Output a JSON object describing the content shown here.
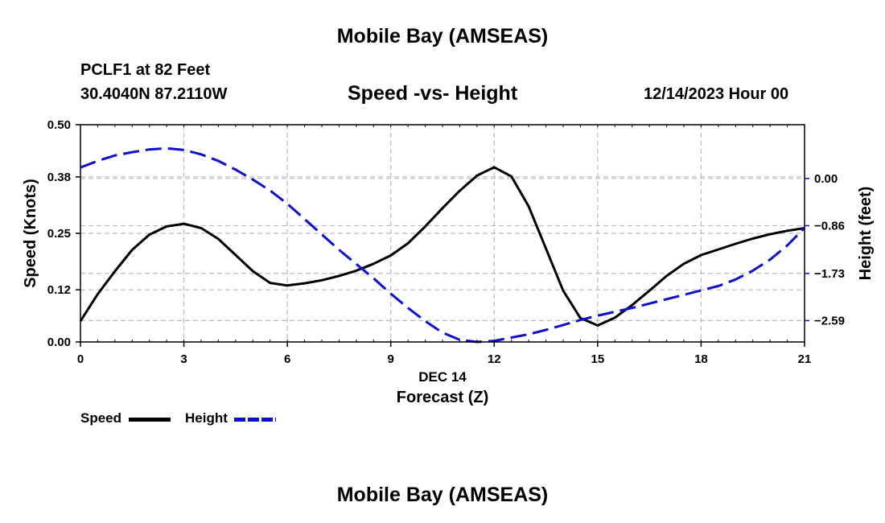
{
  "chart_data": {
    "type": "line",
    "title": "Mobile Bay (AMSEAS)",
    "subtitle": "Speed -vs- Height",
    "station": "PCLF1 at 82 Feet",
    "coords": "30.4040N  87.2110W",
    "date_label": "12/14/2023 Hour 00",
    "xlabel": "Forecast (Z)",
    "xdate_label": "DEC 14",
    "ylabel_left": "Speed (Knots)",
    "ylabel_right": "Height (feet)",
    "xlim": [
      0,
      21
    ],
    "ylim_left": [
      0,
      0.5
    ],
    "ylim_right": [
      -2.98,
      0.98
    ],
    "x_ticks": [
      0,
      3,
      6,
      9,
      12,
      15,
      18,
      21
    ],
    "y_ticks_left": [
      "0.00",
      "0.12",
      "0.25",
      "0.38",
      "0.50"
    ],
    "y_ticks_right": [
      "0.00",
      "−0.86",
      "−1.73",
      "−2.59"
    ],
    "y_ticks_right_values": [
      0.0,
      -0.86,
      -1.73,
      -2.59
    ],
    "grid": true,
    "series": [
      {
        "name": "Speed",
        "axis": "left",
        "color": "#000000",
        "style": "solid",
        "x": [
          0,
          0.5,
          1,
          1.5,
          2,
          2.5,
          3,
          3.5,
          4,
          4.5,
          5,
          5.5,
          6,
          6.5,
          7,
          7.5,
          8,
          8.5,
          9,
          9.5,
          10,
          10.5,
          11,
          11.5,
          12,
          12.5,
          13,
          13.5,
          14,
          14.5,
          15,
          15.5,
          16,
          16.5,
          17,
          17.5,
          18,
          18.5,
          19,
          19.5,
          20,
          20.5,
          21
        ],
        "values": [
          0.048,
          0.11,
          0.163,
          0.212,
          0.247,
          0.266,
          0.272,
          0.262,
          0.237,
          0.2,
          0.163,
          0.136,
          0.13,
          0.135,
          0.142,
          0.152,
          0.164,
          0.18,
          0.199,
          0.227,
          0.266,
          0.308,
          0.348,
          0.383,
          0.402,
          0.381,
          0.312,
          0.215,
          0.118,
          0.055,
          0.038,
          0.056,
          0.085,
          0.118,
          0.152,
          0.18,
          0.2,
          0.213,
          0.226,
          0.238,
          0.248,
          0.256,
          0.262
        ]
      },
      {
        "name": "Height",
        "axis": "right",
        "color": "#1010cc",
        "style": "dashed",
        "x": [
          0,
          0.5,
          1,
          1.5,
          2,
          2.5,
          3,
          3.5,
          4,
          4.5,
          5,
          5.5,
          6,
          6.5,
          7,
          7.5,
          8,
          8.5,
          9,
          9.5,
          10,
          10.5,
          11,
          11.5,
          12,
          12.5,
          13,
          13.5,
          14,
          14.5,
          15,
          15.5,
          16,
          16.5,
          17,
          17.5,
          18,
          18.5,
          19,
          19.5,
          20,
          20.5,
          21
        ],
        "values": [
          0.2,
          0.32,
          0.42,
          0.48,
          0.53,
          0.55,
          0.52,
          0.44,
          0.32,
          0.16,
          -0.02,
          -0.22,
          -0.46,
          -0.74,
          -1.02,
          -1.3,
          -1.56,
          -1.82,
          -2.1,
          -2.36,
          -2.6,
          -2.81,
          -2.94,
          -2.98,
          -2.96,
          -2.9,
          -2.84,
          -2.76,
          -2.67,
          -2.58,
          -2.5,
          -2.43,
          -2.36,
          -2.28,
          -2.2,
          -2.12,
          -2.04,
          -1.96,
          -1.84,
          -1.68,
          -1.48,
          -1.22,
          -0.9
        ]
      }
    ]
  },
  "legend": {
    "speed_label": "Speed",
    "height_label": "Height"
  },
  "footer_title": "Mobile Bay (AMSEAS)"
}
